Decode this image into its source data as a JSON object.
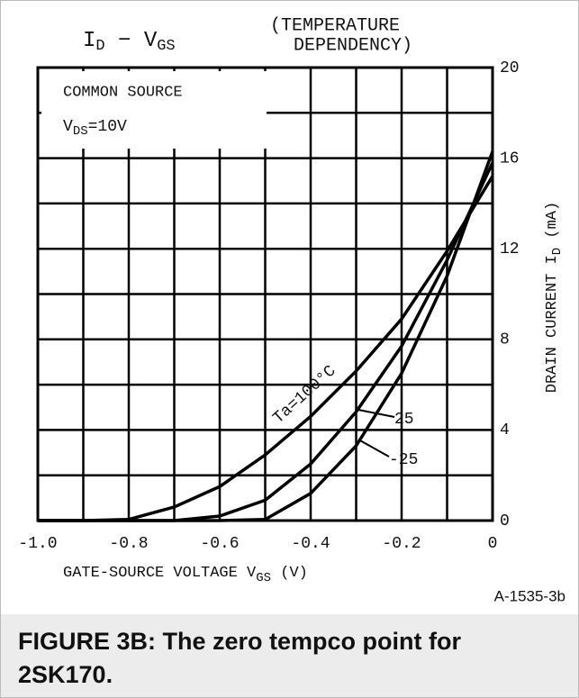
{
  "chart_data": {
    "type": "line",
    "title_left": "I",
    "title_left_sub": "D",
    "title_mid": " − V",
    "title_mid_sub": "GS",
    "title_right_1": "(TEMPERATURE",
    "title_right_2": "DEPENDENCY)",
    "annotation_1": "COMMON SOURCE",
    "annotation_2": "V",
    "annotation_2_sub": "DS",
    "annotation_2_rest": "=10V",
    "x_label": "GATE-SOURCE VOLTAGE  V",
    "x_label_sub": "GS",
    "x_label_unit": " (V)",
    "y_label": "DRAIN CURRENT  I",
    "y_label_sub": "D",
    "y_label_unit": " (mA)",
    "x": [
      -1.0,
      -0.9,
      -0.8,
      -0.7,
      -0.6,
      -0.5,
      -0.4,
      -0.3,
      -0.2,
      -0.1,
      0
    ],
    "series": [
      {
        "name": "Ta=100°C",
        "color": "#000000",
        "values": [
          0,
          0,
          0.05,
          0.6,
          1.5,
          2.9,
          4.6,
          6.6,
          8.9,
          11.9,
          15.2
        ]
      },
      {
        "name": "25",
        "color": "#000000",
        "values": [
          0,
          0,
          0,
          0,
          0.2,
          0.9,
          2.5,
          4.8,
          7.7,
          11.5,
          15.8
        ]
      },
      {
        "name": "-25",
        "color": "#000000",
        "values": [
          0,
          0,
          0,
          0,
          0,
          0.05,
          1.2,
          3.3,
          6.5,
          10.8,
          16.3
        ]
      }
    ],
    "xlim": [
      -1.0,
      0
    ],
    "ylim": [
      0,
      20
    ],
    "xticks": [
      {
        "value": -1.0,
        "label": "-1.0"
      },
      -0.8,
      -0.6,
      -0.4,
      -0.2,
      0
    ],
    "yticks": [
      0,
      4,
      8,
      12,
      16,
      20
    ],
    "x_minor_ticks": [
      -0.9,
      -0.7,
      -0.5,
      -0.3,
      -0.1
    ],
    "y_minor_ticks": [
      2,
      6,
      10,
      14,
      18
    ],
    "grid": true,
    "figure_id": "A-1535-3b",
    "caption_1": "FIGURE 3B: The zero tempco point for",
    "caption_2": "2SK170."
  }
}
